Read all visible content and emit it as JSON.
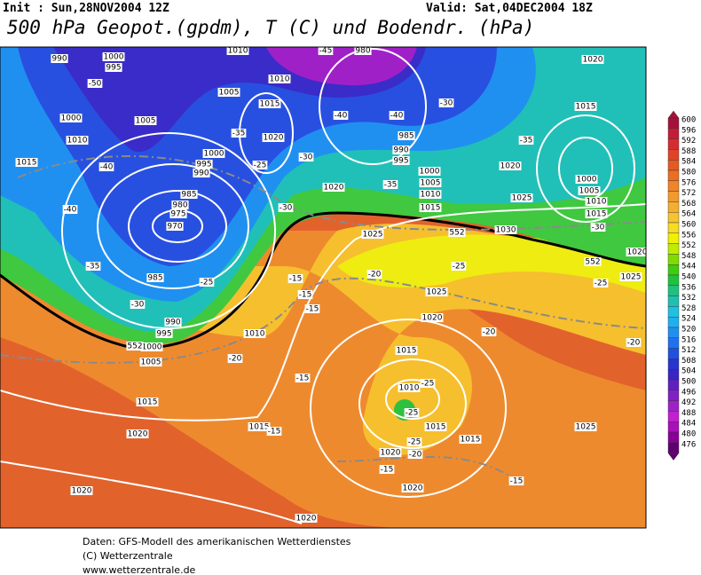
{
  "header": {
    "init": "Init : Sun,28NOV2004 12Z",
    "valid": "Valid: Sat,04DEC2004 18Z",
    "title": "500 hPa Geopot.(gpdm), T (C) und Bodendr. (hPa)"
  },
  "colorbar": {
    "labels": [
      "600",
      "596",
      "592",
      "588",
      "584",
      "580",
      "576",
      "572",
      "568",
      "564",
      "560",
      "556",
      "552",
      "548",
      "544",
      "540",
      "536",
      "532",
      "528",
      "524",
      "520",
      "516",
      "512",
      "508",
      "504",
      "500",
      "496",
      "492",
      "488",
      "484",
      "480",
      "476"
    ],
    "colors": [
      "#a8103c",
      "#c41c38",
      "#d42c30",
      "#de4428",
      "#e65a22",
      "#ec6e20",
      "#f08428",
      "#f29a2e",
      "#f4ae30",
      "#f6c430",
      "#f6dc22",
      "#f0f000",
      "#c0ec00",
      "#80dc00",
      "#40cc10",
      "#20c040",
      "#20c080",
      "#20c0b0",
      "#20c0e0",
      "#20b0f0",
      "#2090f0",
      "#2070f0",
      "#2050e0",
      "#2834d0",
      "#3a24c4",
      "#6020c0",
      "#8020c4",
      "#a020c8",
      "#c020d0",
      "#a810b8",
      "#880098",
      "#600070"
    ]
  },
  "map": {
    "labels": [
      "990",
      "1000",
      "995",
      "1010",
      "980",
      "1020",
      "1005",
      "1010",
      "1015",
      "1015",
      "1000",
      "1005",
      "1010",
      "1020",
      "985",
      "990",
      "995",
      "1000",
      "1005",
      "1010",
      "1015",
      "1000",
      "995",
      "990",
      "1015",
      "1020",
      "1000",
      "1005",
      "1010",
      "1015",
      "985",
      "980",
      "975",
      "970",
      "1020",
      "1025",
      "1025",
      "1030",
      "1020",
      "1025",
      "985",
      "990",
      "995",
      "1000",
      "1005",
      "1010",
      "1020",
      "1015",
      "1010",
      "1015",
      "1015",
      "1015",
      "1015",
      "1020",
      "1020",
      "1020",
      "1025",
      "1020",
      "1020",
      "1025",
      "-50",
      "-45",
      "-40",
      "-40",
      "-30",
      "-35",
      "-35",
      "-25",
      "-30",
      "-40",
      "-35",
      "-40",
      "-30",
      "-30",
      "-35",
      "-30",
      "-25",
      "-25",
      "-20",
      "-15",
      "-15",
      "-15",
      "-25",
      "-20",
      "-20",
      "-20",
      "-15",
      "-25",
      "-25",
      "-25",
      "-20",
      "-15",
      "-15",
      "-15",
      "552",
      "552",
      "552"
    ]
  },
  "footer": [
    "Daten: GFS-Modell des amerikanischen Wetterdienstes",
    "(C) Wetterzentrale",
    "www.wetterzentrale.de"
  ]
}
